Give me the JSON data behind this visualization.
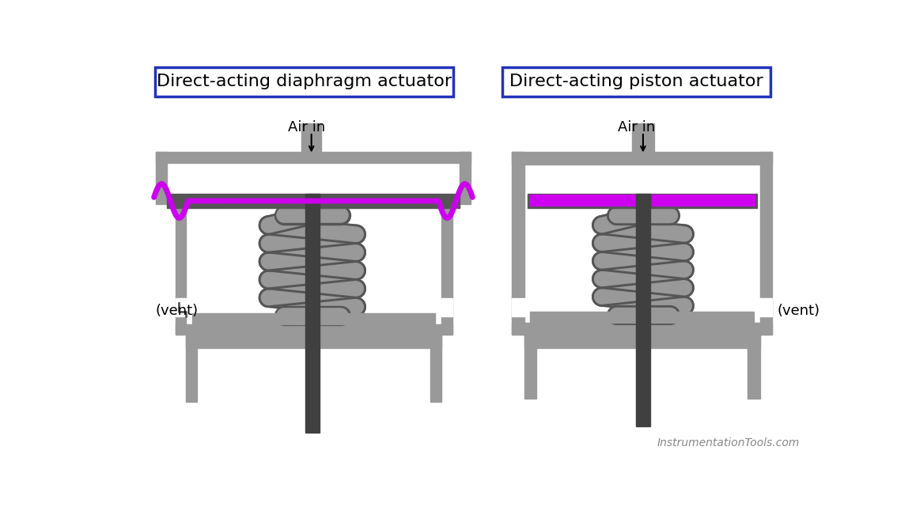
{
  "title1": "Direct-acting diaphragm actuator",
  "title2": "Direct-acting piston actuator",
  "label_air_in": "Air in",
  "label_vent": "(vent)",
  "watermark": "InstrumentationTools.com",
  "bg_color": "#ffffff",
  "gray_body": "#999999",
  "gray_dark": "#555555",
  "gray_mid": "#777777",
  "gray_light": "#bbbbbb",
  "purple": "#cc00ee",
  "blue_border": "#2233bb",
  "stem_dark": "#404040",
  "title_fontsize": 16,
  "label_fontsize": 13,
  "watermark_fontsize": 10
}
